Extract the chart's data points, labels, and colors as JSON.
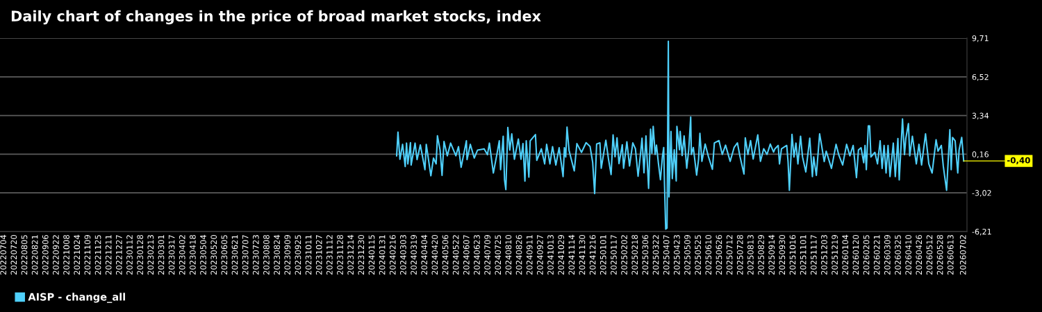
{
  "chart_data": {
    "type": "line",
    "title": "Daily chart of changes in the price of broad market stocks, index",
    "x": [
      "2024-02-21",
      "2024-02-23",
      "2024-02-26",
      "2024-03-01",
      "2024-03-05",
      "2024-03-07",
      "2024-03-09",
      "2024-03-13",
      "2024-03-14",
      "2024-03-20",
      "2024-03-23",
      "2024-03-28",
      "2024-04-04",
      "2024-04-06",
      "2024-04-13",
      "2024-04-17",
      "2024-04-21",
      "2024-04-23",
      "2024-04-27",
      "2024-04-30",
      "2024-05-03",
      "2024-05-08",
      "2024-05-13",
      "2024-05-21",
      "2024-05-25",
      "2024-05-29",
      "2024-06-06",
      "2024-06-07",
      "2024-06-12",
      "2024-06-18",
      "2024-06-23",
      "2024-07-03",
      "2024-07-08",
      "2024-07-11",
      "2024-07-17",
      "2024-07-22",
      "2024-07-26",
      "2024-07-28",
      "2024-08-01",
      "2024-08-03",
      "2024-08-05",
      "2024-08-08",
      "2024-08-11",
      "2024-08-14",
      "2024-08-18",
      "2024-08-24",
      "2024-08-28",
      "2024-08-31",
      "2024-09-03",
      "2024-09-05",
      "2024-09-09",
      "2024-09-11",
      "2024-09-19",
      "2024-09-21",
      "2024-09-28",
      "2024-10-03",
      "2024-10-06",
      "2024-10-11",
      "2024-10-15",
      "2024-10-20",
      "2024-10-25",
      "2024-10-31",
      "2024-11-02",
      "2024-11-04",
      "2024-11-06",
      "2024-11-09",
      "2024-11-12",
      "2024-11-17",
      "2024-11-21",
      "2024-11-28",
      "2024-12-05",
      "2024-12-11",
      "2024-12-15",
      "2024-12-18",
      "2024-12-21",
      "2024-12-26",
      "2024-12-28",
      "2025-01-04",
      "2025-01-08",
      "2025-01-12",
      "2025-01-15",
      "2025-01-18",
      "2025-01-21",
      "2025-01-24",
      "2025-01-29",
      "2025-01-31",
      "2025-02-05",
      "2025-02-09",
      "2025-02-14",
      "2025-02-18",
      "2025-02-22",
      "2025-02-26",
      "2025-02-28",
      "2025-03-03",
      "2025-03-06",
      "2025-03-10",
      "2025-03-13",
      "2025-03-15",
      "2025-03-17",
      "2025-03-20",
      "2025-03-22",
      "2025-03-25",
      "2025-03-28",
      "2025-03-31",
      "2025-04-02",
      "2025-04-03",
      "2025-04-05",
      "2025-04-07",
      "2025-04-09",
      "2025-04-10",
      "2025-04-13",
      "2025-04-15",
      "2025-04-18",
      "2025-04-21",
      "2025-04-22",
      "2025-04-26",
      "2025-04-27",
      "2025-04-30",
      "2025-05-03",
      "2025-05-07",
      "2025-05-10",
      "2025-05-13",
      "2025-05-14",
      "2025-05-17",
      "2025-05-22",
      "2025-05-25",
      "2025-05-27",
      "2025-05-30",
      "2025-06-04",
      "2025-06-09",
      "2025-06-15",
      "2025-06-18",
      "2025-06-25",
      "2025-06-30",
      "2025-07-05",
      "2025-07-12",
      "2025-07-18",
      "2025-07-23",
      "2025-07-27",
      "2025-08-02",
      "2025-08-04",
      "2025-08-08",
      "2025-08-12",
      "2025-08-16",
      "2025-08-23",
      "2025-08-27",
      "2025-09-01",
      "2025-09-06",
      "2025-09-11",
      "2025-09-16",
      "2025-09-18",
      "2025-09-23",
      "2025-09-25",
      "2025-09-28",
      "2025-10-06",
      "2025-10-08",
      "2025-10-10",
      "2025-10-14",
      "2025-10-17",
      "2025-10-20",
      "2025-10-23",
      "2025-10-27",
      "2025-10-30",
      "2025-11-04",
      "2025-11-10",
      "2025-11-14",
      "2025-11-16",
      "2025-11-20",
      "2025-11-25",
      "2025-11-28",
      "2025-12-02",
      "2025-12-05",
      "2025-12-13",
      "2025-12-20",
      "2025-12-24",
      "2025-12-30",
      "2026-01-05",
      "2026-01-10",
      "2026-01-15",
      "2026-01-20",
      "2026-01-23",
      "2026-01-27",
      "2026-01-31",
      "2026-02-02",
      "2026-02-04",
      "2026-02-07",
      "2026-02-09",
      "2026-02-11",
      "2026-02-17",
      "2026-02-21",
      "2026-02-25",
      "2026-02-28",
      "2026-03-03",
      "2026-03-06",
      "2026-03-09",
      "2026-03-12",
      "2026-03-17",
      "2026-03-20",
      "2026-03-24",
      "2026-03-26",
      "2026-03-31",
      "2026-04-03",
      "2026-04-05",
      "2026-04-09",
      "2026-04-11",
      "2026-04-15",
      "2026-04-21",
      "2026-04-25",
      "2026-04-29",
      "2026-05-05",
      "2026-05-10",
      "2026-05-15",
      "2026-05-21",
      "2026-05-24",
      "2026-05-29",
      "2026-06-01",
      "2026-06-06",
      "2026-06-11",
      "2026-06-13",
      "2026-06-15",
      "2026-06-19",
      "2026-06-23",
      "2026-06-25",
      "2026-06-29",
      "2026-07-02"
    ],
    "series": [
      {
        "name": "AISP - change_all",
        "color": "#4fd0fb",
        "values": [
          0.03,
          1.98,
          -0.26,
          0.97,
          -0.86,
          1.07,
          -0.64,
          1.11,
          -0.73,
          1.07,
          -0.29,
          0.92,
          -1.11,
          0.97,
          -1.62,
          -0.16,
          -0.64,
          1.67,
          0.5,
          -1.58,
          1.2,
          0.03,
          1.07,
          0.03,
          0.78,
          -0.92,
          1.26,
          -0.29,
          0.97,
          -0.16,
          0.5,
          0.6,
          0.12,
          1.07,
          -1.39,
          0.03,
          1.26,
          -1.11,
          1.64,
          -1.96,
          -2.75,
          2.36,
          0.5,
          1.83,
          -0.26,
          1.41,
          -0.26,
          1.03,
          -2.05,
          1.26,
          -1.73,
          1.26,
          1.77,
          -0.35,
          0.6,
          -0.64,
          0.97,
          -0.64,
          0.78,
          -0.73,
          0.69,
          -1.68,
          0.69,
          -0.07,
          2.39,
          0.5,
          -0.16,
          -1.22,
          1.03,
          0.31,
          1.11,
          0.8,
          -0.52,
          -3.08,
          0.99,
          1.09,
          -1.0,
          1.31,
          -0.24,
          -1.52,
          1.75,
          -0.05,
          1.5,
          -0.62,
          0.94,
          -1.0,
          1.18,
          -0.81,
          1.09,
          0.61,
          -1.66,
          0.33,
          1.47,
          -1.37,
          1.66,
          -2.66,
          2.22,
          0.24,
          2.45,
          0.14,
          0.9,
          -0.62,
          -1.94,
          -0.05,
          0.71,
          -1.94,
          -6.01,
          -5.92,
          9.45,
          -3.36,
          2.03,
          -1.85,
          0.52,
          -2.04,
          2.45,
          0.52,
          2.03,
          0.05,
          1.66,
          -1.0,
          0.52,
          3.21,
          0.14,
          0.71,
          -1.56,
          -0.24,
          1.88,
          -0.43,
          0.99,
          -0.05,
          -1.09,
          1.09,
          1.28,
          0.14,
          0.9,
          -0.43,
          0.71,
          1.09,
          -0.05,
          -1.47,
          1.5,
          0.14,
          1.28,
          -0.24,
          1.75,
          -0.43,
          0.61,
          0.14,
          0.99,
          0.33,
          0.6,
          0.88,
          -0.64,
          0.6,
          0.88,
          -0.45,
          -2.81,
          1.79,
          -0.07,
          1.07,
          -0.64,
          1.64,
          -0.07,
          -1.3,
          1.48,
          -1.68,
          -0.07,
          -1.58,
          1.83,
          0.88,
          -0.45,
          0.41,
          -1.01,
          0.97,
          0.12,
          -0.73,
          0.97,
          0.03,
          0.88,
          -1.77,
          0.5,
          0.69,
          -0.54,
          0.88,
          -1.11,
          2.49,
          2.49,
          -0.07,
          0.31,
          -0.64,
          1.26,
          -1.01,
          0.88,
          -1.39,
          0.88,
          -1.68,
          1.07,
          -1.68,
          1.45,
          -1.96,
          3.06,
          0.12,
          1.45,
          2.68,
          0.03,
          1.64,
          -0.64,
          0.97,
          -0.73,
          1.83,
          -0.64,
          -1.39,
          1.35,
          0.41,
          0.88,
          -0.83,
          -2.81,
          2.17,
          -1.11,
          1.54,
          1.26,
          -1.39,
          0.5,
          1.54,
          -0.4
        ]
      }
    ],
    "xlim": [
      "2022-06-28",
      "2026-07-07"
    ],
    "xticks": [
      {
        "value": "2022-07-04",
        "label": "20220704"
      },
      {
        "value": "2022-07-20",
        "label": "20220720"
      },
      {
        "value": "2022-08-05",
        "label": "20220805"
      },
      {
        "value": "2022-08-21",
        "label": "20220821"
      },
      {
        "value": "2022-09-06",
        "label": "20220906"
      },
      {
        "value": "2022-09-22",
        "label": "20220922"
      },
      {
        "value": "2022-10-08",
        "label": "20221008"
      },
      {
        "value": "2022-10-24",
        "label": "20221024"
      },
      {
        "value": "2022-11-09",
        "label": "20221109"
      },
      {
        "value": "2022-11-25",
        "label": "20221125"
      },
      {
        "value": "2022-12-11",
        "label": "20221211"
      },
      {
        "value": "2022-12-27",
        "label": "20221227"
      },
      {
        "value": "2023-01-12",
        "label": "20230112"
      },
      {
        "value": "2023-01-28",
        "label": "20230128"
      },
      {
        "value": "2023-02-13",
        "label": "20230213"
      },
      {
        "value": "2023-03-01",
        "label": "20230301"
      },
      {
        "value": "2023-03-17",
        "label": "20230317"
      },
      {
        "value": "2023-04-02",
        "label": "20230402"
      },
      {
        "value": "2023-04-18",
        "label": "20230418"
      },
      {
        "value": "2023-05-04",
        "label": "20230504"
      },
      {
        "value": "2023-05-20",
        "label": "20230520"
      },
      {
        "value": "2023-06-05",
        "label": "20230605"
      },
      {
        "value": "2023-06-21",
        "label": "20230621"
      },
      {
        "value": "2023-07-07",
        "label": "20230707"
      },
      {
        "value": "2023-07-23",
        "label": "20230723"
      },
      {
        "value": "2023-08-08",
        "label": "20230808"
      },
      {
        "value": "2023-08-24",
        "label": "20230824"
      },
      {
        "value": "2023-09-09",
        "label": "20230909"
      },
      {
        "value": "2023-09-25",
        "label": "20230925"
      },
      {
        "value": "2023-10-11",
        "label": "20231011"
      },
      {
        "value": "2023-10-27",
        "label": "20231027"
      },
      {
        "value": "2023-11-12",
        "label": "20231112"
      },
      {
        "value": "2023-11-28",
        "label": "20231128"
      },
      {
        "value": "2023-12-14",
        "label": "20231214"
      },
      {
        "value": "2023-12-30",
        "label": "20231230"
      },
      {
        "value": "2024-01-15",
        "label": "20240115"
      },
      {
        "value": "2024-01-31",
        "label": "20240131"
      },
      {
        "value": "2024-02-16",
        "label": "20240216"
      },
      {
        "value": "2024-03-03",
        "label": "20240303"
      },
      {
        "value": "2024-03-19",
        "label": "20240319"
      },
      {
        "value": "2024-04-04",
        "label": "20240404"
      },
      {
        "value": "2024-04-20",
        "label": "20240420"
      },
      {
        "value": "2024-05-06",
        "label": "20240506"
      },
      {
        "value": "2024-05-22",
        "label": "20240522"
      },
      {
        "value": "2024-06-07",
        "label": "20240607"
      },
      {
        "value": "2024-06-23",
        "label": "20240623"
      },
      {
        "value": "2024-07-09",
        "label": "20240709"
      },
      {
        "value": "2024-07-25",
        "label": "20240725"
      },
      {
        "value": "2024-08-10",
        "label": "20240810"
      },
      {
        "value": "2024-08-26",
        "label": "20240826"
      },
      {
        "value": "2024-09-11",
        "label": "20240911"
      },
      {
        "value": "2024-09-27",
        "label": "20240927"
      },
      {
        "value": "2024-10-13",
        "label": "20241013"
      },
      {
        "value": "2024-10-29",
        "label": "20241029"
      },
      {
        "value": "2024-11-14",
        "label": "20241114"
      },
      {
        "value": "2024-11-30",
        "label": "20241130"
      },
      {
        "value": "2024-12-16",
        "label": "20241216"
      },
      {
        "value": "2025-01-01",
        "label": "20250101"
      },
      {
        "value": "2025-01-17",
        "label": "20250117"
      },
      {
        "value": "2025-02-02",
        "label": "20250202"
      },
      {
        "value": "2025-02-18",
        "label": "20250218"
      },
      {
        "value": "2025-03-06",
        "label": "20250306"
      },
      {
        "value": "2025-03-22",
        "label": "20250322"
      },
      {
        "value": "2025-04-07",
        "label": "20250407"
      },
      {
        "value": "2025-04-23",
        "label": "20250423"
      },
      {
        "value": "2025-05-09",
        "label": "20250509"
      },
      {
        "value": "2025-05-25",
        "label": "20250525"
      },
      {
        "value": "2025-06-10",
        "label": "20250610"
      },
      {
        "value": "2025-06-26",
        "label": "20250626"
      },
      {
        "value": "2025-07-12",
        "label": "20250712"
      },
      {
        "value": "2025-07-28",
        "label": "20250728"
      },
      {
        "value": "2025-08-13",
        "label": "20250813"
      },
      {
        "value": "2025-08-29",
        "label": "20250829"
      },
      {
        "value": "2025-09-14",
        "label": "20250914"
      },
      {
        "value": "2025-09-30",
        "label": "20250930"
      },
      {
        "value": "2025-10-16",
        "label": "20251016"
      },
      {
        "value": "2025-11-01",
        "label": "20251101"
      },
      {
        "value": "2025-11-17",
        "label": "20251117"
      },
      {
        "value": "2025-12-03",
        "label": "20251203"
      },
      {
        "value": "2025-12-19",
        "label": "20251219"
      },
      {
        "value": "2026-01-04",
        "label": "20260104"
      },
      {
        "value": "2026-01-20",
        "label": "20260120"
      },
      {
        "value": "2026-02-05",
        "label": "20260205"
      },
      {
        "value": "2026-02-21",
        "label": "20260221"
      },
      {
        "value": "2026-03-09",
        "label": "20260309"
      },
      {
        "value": "2026-03-25",
        "label": "20260325"
      },
      {
        "value": "2026-04-10",
        "label": "20260410"
      },
      {
        "value": "2026-04-26",
        "label": "20260426"
      },
      {
        "value": "2026-05-12",
        "label": "20260512"
      },
      {
        "value": "2026-05-28",
        "label": "20260528"
      },
      {
        "value": "2026-06-13",
        "label": "20260613"
      },
      {
        "value": "2026-07-02",
        "label": "20260702"
      }
    ],
    "ylim": [
      -6.21,
      9.71
    ],
    "yticks": [
      {
        "value": -6.21,
        "label": "-6,21"
      },
      {
        "value": -3.02,
        "label": "-3,02"
      },
      {
        "value": 0.16,
        "label": "0,16"
      },
      {
        "value": 3.34,
        "label": "3,34"
      },
      {
        "value": 6.52,
        "label": "6,52"
      },
      {
        "value": 9.71,
        "label": "9,71"
      }
    ],
    "annotations": [
      {
        "text": "-0,40",
        "x": "2026-07-02",
        "y": -0.4
      }
    ],
    "grid": "y",
    "legend": "bottom left"
  }
}
